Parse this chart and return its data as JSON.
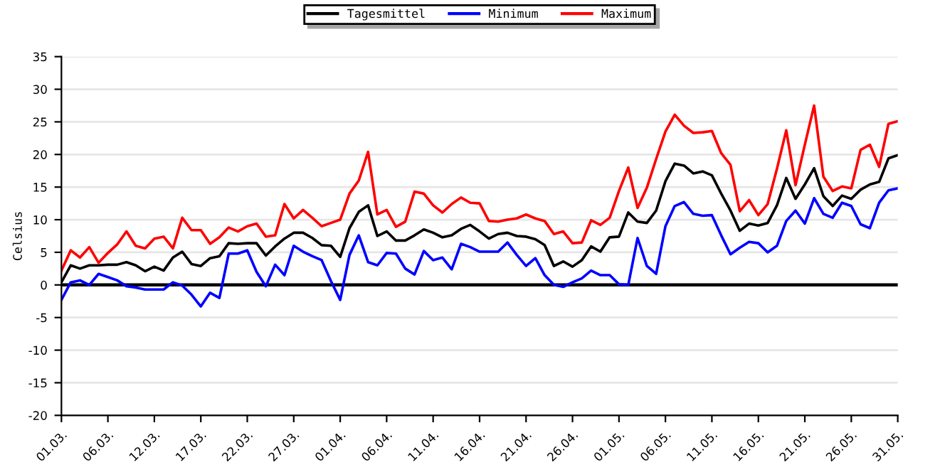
{
  "chart_data": {
    "type": "line",
    "ylabel": "Celsius",
    "categories": [
      "01.03.",
      null,
      null,
      null,
      null,
      "06.03.",
      null,
      null,
      null,
      null,
      "12.03.",
      null,
      null,
      null,
      null,
      "17.03.",
      null,
      null,
      null,
      null,
      "22.03.",
      null,
      null,
      null,
      null,
      "27.03.",
      null,
      null,
      null,
      null,
      "01.04.",
      null,
      null,
      null,
      null,
      "06.04.",
      null,
      null,
      null,
      null,
      "11.04.",
      null,
      null,
      null,
      null,
      "16.04.",
      null,
      null,
      null,
      null,
      "21.04.",
      null,
      null,
      null,
      null,
      "26.04.",
      null,
      null,
      null,
      null,
      "01.05.",
      null,
      null,
      null,
      null,
      "06.05.",
      null,
      null,
      null,
      null,
      "11.05.",
      null,
      null,
      null,
      null,
      "16.05.",
      null,
      null,
      null,
      null,
      "21.05.",
      null,
      null,
      null,
      null,
      "26.05.",
      null,
      null,
      null,
      null,
      "31.05."
    ],
    "series": [
      {
        "name": "Tagesmittel",
        "color": "#000000",
        "values": [
          0.4,
          3.0,
          2.5,
          3.0,
          3.0,
          3.1,
          3.1,
          3.5,
          3.0,
          2.1,
          2.8,
          2.2,
          4.2,
          5.1,
          3.2,
          2.9,
          4.1,
          4.4,
          6.4,
          6.3,
          6.4,
          6.4,
          4.5,
          5.9,
          7.1,
          8.0,
          8.0,
          7.2,
          6.1,
          6.0,
          4.3,
          8.7,
          11.2,
          12.2,
          7.5,
          8.2,
          6.8,
          6.8,
          7.6,
          8.5,
          8.0,
          7.3,
          7.6,
          8.6,
          9.2,
          8.2,
          7.1,
          7.8,
          8.0,
          7.5,
          7.4,
          7.0,
          6.1,
          2.9,
          3.6,
          2.8,
          3.8,
          5.9,
          5.1,
          7.3,
          7.4,
          11.1,
          9.7,
          9.5,
          11.4,
          15.9,
          18.6,
          18.3,
          17.1,
          17.4,
          16.8,
          14.0,
          11.4,
          8.3,
          9.4,
          9.1,
          9.5,
          12.2,
          16.4,
          13.2,
          15.4,
          17.9,
          13.6,
          12.1,
          13.7,
          13.2,
          14.6,
          15.4,
          15.8,
          19.4,
          19.9
        ]
      },
      {
        "name": "Minimum",
        "color": "#0000ff",
        "values": [
          -2.3,
          0.4,
          0.7,
          0,
          1.7,
          1.2,
          0.7,
          -0.2,
          -0.4,
          -0.7,
          -0.7,
          -0.7,
          0.4,
          -0.1,
          -1.5,
          -3.3,
          -1.2,
          -2.0,
          4.8,
          4.8,
          5.3,
          2.0,
          -0.2,
          3.1,
          1.5,
          6.0,
          5.1,
          4.4,
          3.8,
          0.6,
          -2.3,
          4.6,
          7.6,
          3.5,
          3.0,
          4.9,
          4.8,
          2.5,
          1.6,
          5.2,
          3.8,
          4.2,
          2.4,
          6.3,
          5.8,
          5.1,
          5.1,
          5.1,
          6.5,
          4.6,
          2.9,
          4.1,
          1.5,
          0,
          -0.3,
          0.4,
          1.0,
          2.2,
          1.5,
          1.5,
          0.1,
          0,
          7.2,
          2.9,
          1.7,
          9.0,
          12.1,
          12.7,
          10.9,
          10.6,
          10.7,
          7.6,
          4.7,
          5.7,
          6.6,
          6.4,
          5.0,
          6.0,
          9.8,
          11.4,
          9.4,
          13.3,
          10.9,
          10.3,
          12.6,
          12.1,
          9.3,
          8.7,
          12.6,
          14.5,
          14.8
        ]
      },
      {
        "name": "Maximum",
        "color": "#ff0000",
        "values": [
          2.2,
          5.3,
          4.2,
          5.8,
          3.4,
          4.9,
          6.2,
          8.2,
          6.0,
          5.6,
          7.1,
          7.4,
          5.6,
          10.3,
          8.4,
          8.4,
          6.3,
          7.3,
          8.8,
          8.2,
          9.0,
          9.4,
          7.4,
          7.6,
          12.4,
          10.2,
          11.5,
          10.3,
          9.0,
          9.5,
          10.0,
          14.0,
          16.0,
          20.4,
          10.8,
          11.5,
          8.9,
          9.7,
          14.3,
          14.0,
          12.2,
          11.1,
          12.4,
          13.4,
          12.6,
          12.5,
          9.8,
          9.7,
          10.0,
          10.2,
          10.8,
          10.2,
          9.8,
          7.8,
          8.2,
          6.4,
          6.5,
          9.9,
          9.2,
          10.3,
          14.4,
          18.0,
          11.8,
          14.9,
          19.3,
          23.5,
          26.1,
          24.4,
          23.3,
          23.4,
          23.6,
          20.2,
          18.4,
          11.3,
          13.0,
          10.7,
          12.4,
          17.8,
          23.7,
          15.3,
          21.5,
          27.5,
          16.6,
          14.4,
          15.1,
          14.8,
          20.7,
          21.5,
          18.1,
          24.7,
          25.1
        ]
      }
    ],
    "ylim": [
      -20,
      35
    ],
    "yticks": [
      -20,
      -15,
      -10,
      -5,
      0,
      5,
      10,
      15,
      20,
      25,
      30,
      35
    ],
    "ref_lines": [
      {
        "axis": "y",
        "value": 0,
        "color": "#000000",
        "line_style": "solid"
      }
    ],
    "grid": "y",
    "legend": "top",
    "marker": "none",
    "line_style": "solid"
  }
}
